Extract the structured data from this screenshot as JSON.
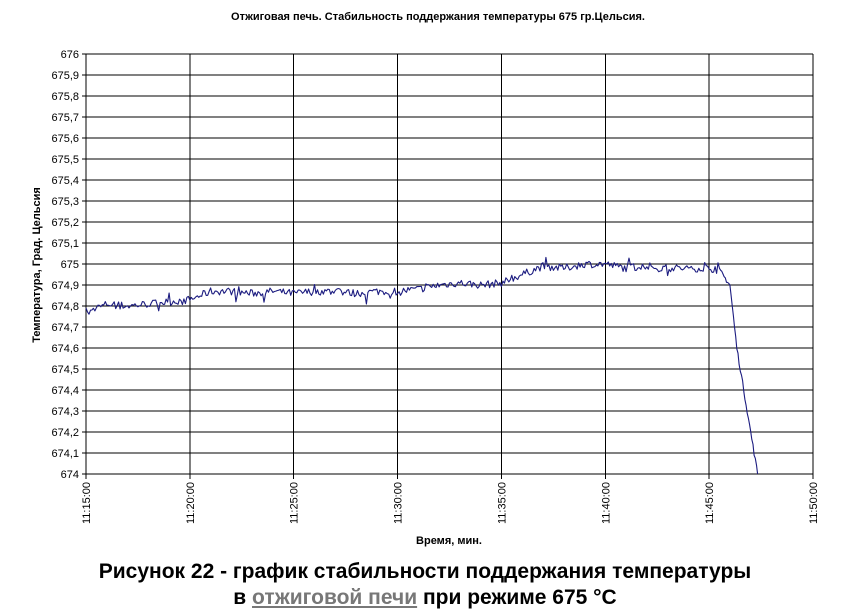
{
  "chart_data": {
    "type": "line",
    "title": "Отжиговая печь. Стабильность поддержания температуры 675 гр.Цельсия.",
    "xlabel": "Время, мин.",
    "ylabel": "Температура, Град. Цельсия",
    "x_tick_labels": [
      "11:15:00",
      "11:20:00",
      "11:25:00",
      "11:30:00",
      "11:35:00",
      "11:40:00",
      "11:45:00",
      "11:50:00"
    ],
    "y_tick_labels": [
      "674",
      "674,1",
      "674,2",
      "674,3",
      "674,4",
      "674,5",
      "674,6",
      "674,7",
      "674,8",
      "674,9",
      "675",
      "675,1",
      "675,2",
      "675,3",
      "675,4",
      "675,5",
      "675,6",
      "675,7",
      "675,8",
      "675,9",
      "676"
    ],
    "xlim": [
      "11:15:00",
      "11:50:00"
    ],
    "ylim": [
      674,
      676
    ],
    "grid": true,
    "legend": "none",
    "line_color": "#1c1c80",
    "series": [
      {
        "x": [
          "11:15:00",
          "11:16:00",
          "11:17:00",
          "11:18:00",
          "11:19:00",
          "11:20:00",
          "11:21:00",
          "11:22:00",
          "11:23:00",
          "11:24:00",
          "11:25:00",
          "11:26:00",
          "11:27:00",
          "11:28:00",
          "11:29:00",
          "11:30:00",
          "11:31:00",
          "11:32:00",
          "11:33:00",
          "11:34:00",
          "11:35:00",
          "11:36:00",
          "11:37:00",
          "11:38:00",
          "11:39:00",
          "11:40:00",
          "11:41:00",
          "11:42:00",
          "11:43:00",
          "11:44:00",
          "11:45:00",
          "11:45:30",
          "11:46:00",
          "11:46:20",
          "11:46:40",
          "11:47:00",
          "11:47:20"
        ],
        "y": [
          674.76,
          674.81,
          674.8,
          674.81,
          674.82,
          674.83,
          674.87,
          674.87,
          674.86,
          674.87,
          674.86,
          674.87,
          674.87,
          674.86,
          674.87,
          674.87,
          674.88,
          674.9,
          674.91,
          674.9,
          674.91,
          674.95,
          674.99,
          674.98,
          675.0,
          675.0,
          674.98,
          674.99,
          674.98,
          674.98,
          674.98,
          674.97,
          674.9,
          674.6,
          674.4,
          674.2,
          674.0
        ]
      }
    ]
  },
  "caption": {
    "line1": "Рисунок 22 - график стабильности поддержания температуры",
    "line2_prefix": "в",
    "line2_link": "отжиговой печи",
    "line2_suffix": "при режиме 675 °С"
  }
}
